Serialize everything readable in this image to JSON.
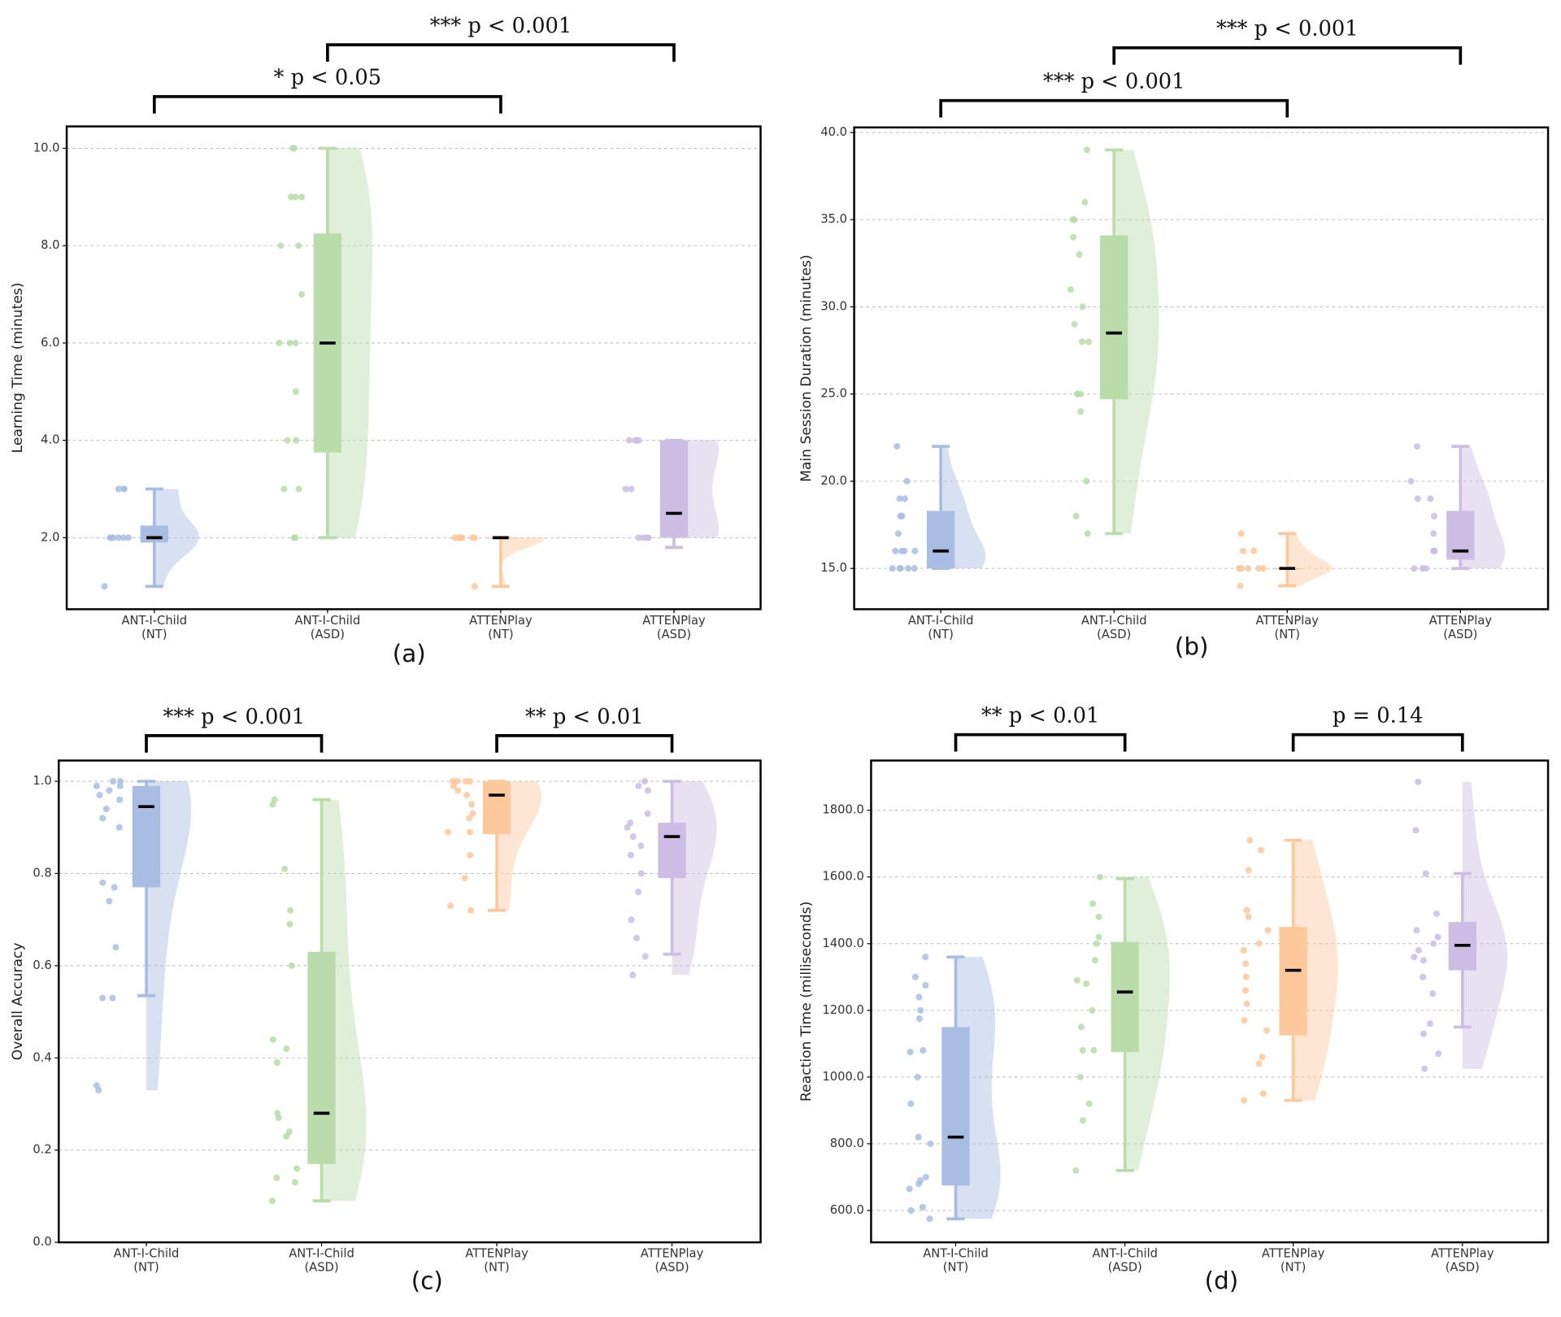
{
  "chart_data": [
    {
      "type": "raincloud",
      "panel_label": "(a)",
      "y_label": "Learning Time (minutes)",
      "categories": [
        "ANT-I-Child\n(NT)",
        "ANT-I-Child\n(ASD)",
        "ATTENPlay\n(NT)",
        "ATTENPlay\n(ASD)"
      ],
      "colors": [
        "#a9bde3",
        "#b9dcaa",
        "#fcc89c",
        "#cbbde3"
      ],
      "ylim": [
        0.53,
        10.45
      ],
      "yticks": [
        {
          "value": 2,
          "label": "2.0"
        },
        {
          "value": 4,
          "label": "4.0"
        },
        {
          "value": 6,
          "label": "6.0"
        },
        {
          "value": 8,
          "label": "8.0"
        },
        {
          "value": 10,
          "label": "10.0"
        }
      ],
      "grid": true,
      "annotations": [
        "* p < 0.05",
        "*** p < 0.001"
      ],
      "boxes": [
        {
          "whisker_low": 1,
          "q1": 1.9,
          "median": 2,
          "q3": 2.25,
          "whisker_high": 3,
          "points": [
            1,
            2,
            2,
            2,
            2,
            2,
            2,
            3,
            3,
            3
          ]
        },
        {
          "whisker_low": 2,
          "q1": 3.75,
          "median": 6,
          "q3": 8.25,
          "whisker_high": 10,
          "points": [
            2,
            2,
            3,
            3,
            4,
            4,
            5,
            6,
            6,
            6,
            7,
            8,
            8,
            9,
            9,
            9,
            10,
            10
          ]
        },
        {
          "whisker_low": 1,
          "q1": 2,
          "median": 2,
          "q3": 2,
          "whisker_high": 2,
          "points": [
            1,
            2,
            2,
            2,
            2,
            2,
            2,
            2,
            2,
            2
          ]
        },
        {
          "whisker_low": 1.8,
          "q1": 2,
          "median": 2.5,
          "q3": 4,
          "whisker_high": 4,
          "points": [
            2,
            2,
            2,
            2,
            3,
            3,
            4,
            4,
            4,
            4
          ]
        }
      ]
    },
    {
      "type": "raincloud",
      "panel_label": "(b)",
      "y_label": "Main Session Duration (minutes)",
      "categories": [
        "ANT-I-Child\n(NT)",
        "ANT-I-Child\n(ASD)",
        "ATTENPlay\n(NT)",
        "ATTENPlay\n(ASD)"
      ],
      "colors": [
        "#a9bde3",
        "#b9dcaa",
        "#fcc89c",
        "#cbbde3"
      ],
      "ylim": [
        12.66,
        40.29
      ],
      "yticks": [
        {
          "value": 15,
          "label": "15.0"
        },
        {
          "value": 20,
          "label": "20.0"
        },
        {
          "value": 25,
          "label": "25.0"
        },
        {
          "value": 30,
          "label": "30.0"
        },
        {
          "value": 35,
          "label": "35.0"
        },
        {
          "value": 40,
          "label": "40.0"
        }
      ],
      "grid": true,
      "annotations": [
        "*** p < 0.001",
        "*** p < 0.001"
      ],
      "boxes": [
        {
          "whisker_low": 15,
          "q1": 15,
          "median": 16,
          "q3": 18.3,
          "whisker_high": 22,
          "points": [
            15,
            15,
            15,
            15,
            15,
            16,
            16,
            16,
            16,
            17,
            18,
            18,
            19,
            19,
            20,
            22
          ]
        },
        {
          "whisker_low": 17,
          "q1": 24.7,
          "median": 28.5,
          "q3": 34.1,
          "whisker_high": 39,
          "points": [
            17,
            18,
            20,
            24,
            25,
            25,
            25,
            28,
            28,
            29,
            30,
            31,
            33,
            34,
            35,
            35,
            36,
            39
          ]
        },
        {
          "whisker_low": 14,
          "q1": 15,
          "median": 15,
          "q3": 15,
          "whisker_high": 17,
          "points": [
            14,
            15,
            15,
            15,
            15,
            15,
            15,
            16,
            16,
            17
          ]
        },
        {
          "whisker_low": 15,
          "q1": 15.5,
          "median": 16,
          "q3": 18.3,
          "whisker_high": 22,
          "points": [
            15,
            15,
            15,
            16,
            16,
            16,
            17,
            18,
            19,
            19,
            20,
            22
          ]
        }
      ]
    },
    {
      "type": "raincloud",
      "panel_label": "(c)",
      "y_label": "Overall Accuracy",
      "categories": [
        "ANT-I-Child\n(NT)",
        "ANT-I-Child\n(ASD)",
        "ATTENPlay\n(NT)",
        "ATTENPlay\n(ASD)"
      ],
      "colors": [
        "#a9bde3",
        "#b9dcaa",
        "#fcc89c",
        "#cbbde3"
      ],
      "ylim": [
        0,
        1.045
      ],
      "yticks": [
        {
          "value": 0,
          "label": "0.0"
        },
        {
          "value": 0.2,
          "label": "0.2"
        },
        {
          "value": 0.4,
          "label": "0.4"
        },
        {
          "value": 0.6,
          "label": "0.6"
        },
        {
          "value": 0.8,
          "label": "0.8"
        },
        {
          "value": 1,
          "label": "1.0"
        }
      ],
      "grid": true,
      "annotations": [
        "*** p < 0.001",
        "** p < 0.01"
      ],
      "boxes": [
        {
          "whisker_low": 0.535,
          "q1": 0.77,
          "median": 0.945,
          "q3": 0.99,
          "whisker_high": 1.0,
          "points": [
            0.33,
            0.34,
            0.53,
            0.53,
            0.64,
            0.74,
            0.77,
            0.78,
            0.9,
            0.92,
            0.94,
            0.96,
            0.97,
            0.98,
            0.99,
            0.99,
            1.0,
            1.0
          ]
        },
        {
          "whisker_low": 0.09,
          "q1": 0.17,
          "median": 0.28,
          "q3": 0.63,
          "whisker_high": 0.96,
          "points": [
            0.09,
            0.13,
            0.14,
            0.16,
            0.23,
            0.24,
            0.27,
            0.28,
            0.39,
            0.42,
            0.44,
            0.6,
            0.69,
            0.72,
            0.81,
            0.95,
            0.96
          ]
        },
        {
          "whisker_low": 0.72,
          "q1": 0.885,
          "median": 0.97,
          "q3": 1.0,
          "whisker_high": 1.0,
          "points": [
            0.72,
            0.73,
            0.79,
            0.84,
            0.89,
            0.89,
            0.92,
            0.93,
            0.95,
            0.97,
            0.98,
            0.99,
            1.0,
            1.0,
            1.0,
            1.0
          ]
        },
        {
          "whisker_low": 0.625,
          "q1": 0.79,
          "median": 0.88,
          "q3": 0.91,
          "whisker_high": 1.0,
          "points": [
            0.58,
            0.62,
            0.66,
            0.7,
            0.76,
            0.8,
            0.84,
            0.86,
            0.88,
            0.9,
            0.91,
            0.93,
            0.98,
            0.99,
            1.0
          ]
        }
      ]
    },
    {
      "type": "raincloud",
      "panel_label": "(d)",
      "y_label": "Reaction Time (milliseconds)",
      "categories": [
        "ANT-I-Child\n(NT)",
        "ANT-I-Child\n(ASD)",
        "ATTENPlay\n(NT)",
        "ATTENPlay\n(ASD)"
      ],
      "colors": [
        "#a9bde3",
        "#b9dcaa",
        "#fcc89c",
        "#cbbde3"
      ],
      "ylim": [
        504.5,
        1949
      ],
      "yticks": [
        {
          "value": 600,
          "label": "600.0"
        },
        {
          "value": 800,
          "label": "800.0"
        },
        {
          "value": 1000,
          "label": "1000.0"
        },
        {
          "value": 1200,
          "label": "1200.0"
        },
        {
          "value": 1400,
          "label": "1400.0"
        },
        {
          "value": 1600,
          "label": "1600.0"
        },
        {
          "value": 1800,
          "label": "1800.0"
        }
      ],
      "grid": true,
      "annotations": [
        "** p < 0.01",
        "p = 0.14"
      ],
      "boxes": [
        {
          "whisker_low": 575,
          "q1": 675,
          "median": 820,
          "q3": 1150,
          "whisker_high": 1360,
          "points": [
            575,
            600,
            610,
            665,
            680,
            690,
            700,
            800,
            820,
            920,
            1000,
            1075,
            1080,
            1175,
            1200,
            1240,
            1275,
            1300,
            1360
          ]
        },
        {
          "whisker_low": 720,
          "q1": 1075,
          "median": 1255,
          "q3": 1405,
          "whisker_high": 1595,
          "points": [
            720,
            870,
            920,
            1000,
            1080,
            1080,
            1150,
            1200,
            1280,
            1290,
            1350,
            1400,
            1420,
            1480,
            1520,
            1600
          ]
        },
        {
          "whisker_low": 930,
          "q1": 1125,
          "median": 1320,
          "q3": 1450,
          "whisker_high": 1710,
          "points": [
            930,
            950,
            1040,
            1060,
            1140,
            1170,
            1220,
            1260,
            1300,
            1340,
            1380,
            1400,
            1440,
            1480,
            1500,
            1620,
            1680,
            1710
          ]
        },
        {
          "whisker_low": 1150,
          "q1": 1320,
          "median": 1395,
          "q3": 1465,
          "whisker_high": 1610,
          "points": [
            1025,
            1070,
            1130,
            1160,
            1250,
            1300,
            1350,
            1360,
            1380,
            1400,
            1420,
            1440,
            1490,
            1610,
            1740,
            1885
          ]
        }
      ]
    }
  ]
}
